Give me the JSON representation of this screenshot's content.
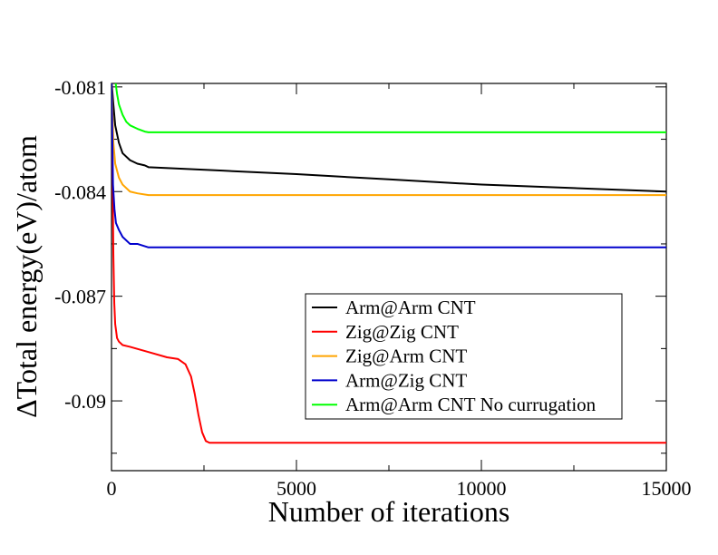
{
  "chart_data": {
    "type": "line",
    "title": "",
    "xlabel": "Number of iterations",
    "ylabel": "ΔTotal energy(eV)/atom",
    "xlim": [
      0,
      15000
    ],
    "ylim": [
      -0.092,
      -0.0809
    ],
    "x_ticks": [
      0,
      5000,
      10000,
      15000
    ],
    "x_tick_labels": [
      "0",
      "5000",
      "10000",
      "15000"
    ],
    "y_ticks": [
      -0.081,
      -0.084,
      -0.087,
      -0.09
    ],
    "y_tick_labels": [
      "-0.081",
      "-0.084",
      "-0.087",
      "-0.09"
    ],
    "grid": false,
    "legend_position": "lower-right",
    "series": [
      {
        "name": "Arm@Arm CNT",
        "color": "#000000",
        "x": [
          0,
          50,
          100,
          200,
          300,
          500,
          700,
          900,
          1000,
          3000,
          5000,
          7500,
          10000,
          12500,
          15000
        ],
        "y": [
          -0.0808,
          -0.0815,
          -0.0821,
          -0.0826,
          -0.0829,
          -0.0831,
          -0.0832,
          -0.08325,
          -0.0833,
          -0.0834,
          -0.0835,
          -0.08365,
          -0.0838,
          -0.0839,
          -0.084
        ]
      },
      {
        "name": "Zig@Zig CNT",
        "color": "#ff0000",
        "x": [
          0,
          25,
          50,
          75,
          100,
          150,
          200,
          300,
          500,
          1000,
          1500,
          1800,
          2000,
          2150,
          2250,
          2350,
          2450,
          2550,
          2650,
          3000,
          5000,
          10000,
          15000
        ],
        "y": [
          -0.0808,
          -0.083,
          -0.0858,
          -0.0872,
          -0.0878,
          -0.0882,
          -0.0883,
          -0.0884,
          -0.08845,
          -0.0886,
          -0.08875,
          -0.0888,
          -0.08895,
          -0.0893,
          -0.0898,
          -0.0904,
          -0.0909,
          -0.09115,
          -0.0912,
          -0.0912,
          -0.0912,
          -0.0912,
          -0.0912
        ]
      },
      {
        "name": "Zig@Arm CNT",
        "color": "#ffa500",
        "x": [
          0,
          50,
          100,
          200,
          300,
          500,
          700,
          1000,
          1500,
          5000,
          10000,
          15000
        ],
        "y": [
          -0.0808,
          -0.0826,
          -0.0832,
          -0.0836,
          -0.0838,
          -0.084,
          -0.08405,
          -0.0841,
          -0.0841,
          -0.0841,
          -0.0841,
          -0.0841
        ]
      },
      {
        "name": "Arm@Zig CNT",
        "color": "#0000cd",
        "x": [
          0,
          40,
          80,
          120,
          200,
          300,
          500,
          700,
          1000,
          1500,
          5000,
          10000,
          15000
        ],
        "y": [
          -0.0808,
          -0.0838,
          -0.0845,
          -0.0849,
          -0.0851,
          -0.0853,
          -0.0855,
          -0.0855,
          -0.0856,
          -0.0856,
          -0.0856,
          -0.0856,
          -0.0856
        ]
      },
      {
        "name": "Arm@Arm CNT No currugation",
        "color": "#00ff00",
        "x": [
          0,
          100,
          150,
          200,
          300,
          400,
          500,
          700,
          900,
          1000,
          1500,
          5000,
          10000,
          15000
        ],
        "y": [
          -0.0808,
          -0.0808,
          -0.0812,
          -0.0815,
          -0.0818,
          -0.082,
          -0.0821,
          -0.0822,
          -0.08228,
          -0.0823,
          -0.0823,
          -0.0823,
          -0.0823,
          -0.0823
        ]
      }
    ]
  }
}
